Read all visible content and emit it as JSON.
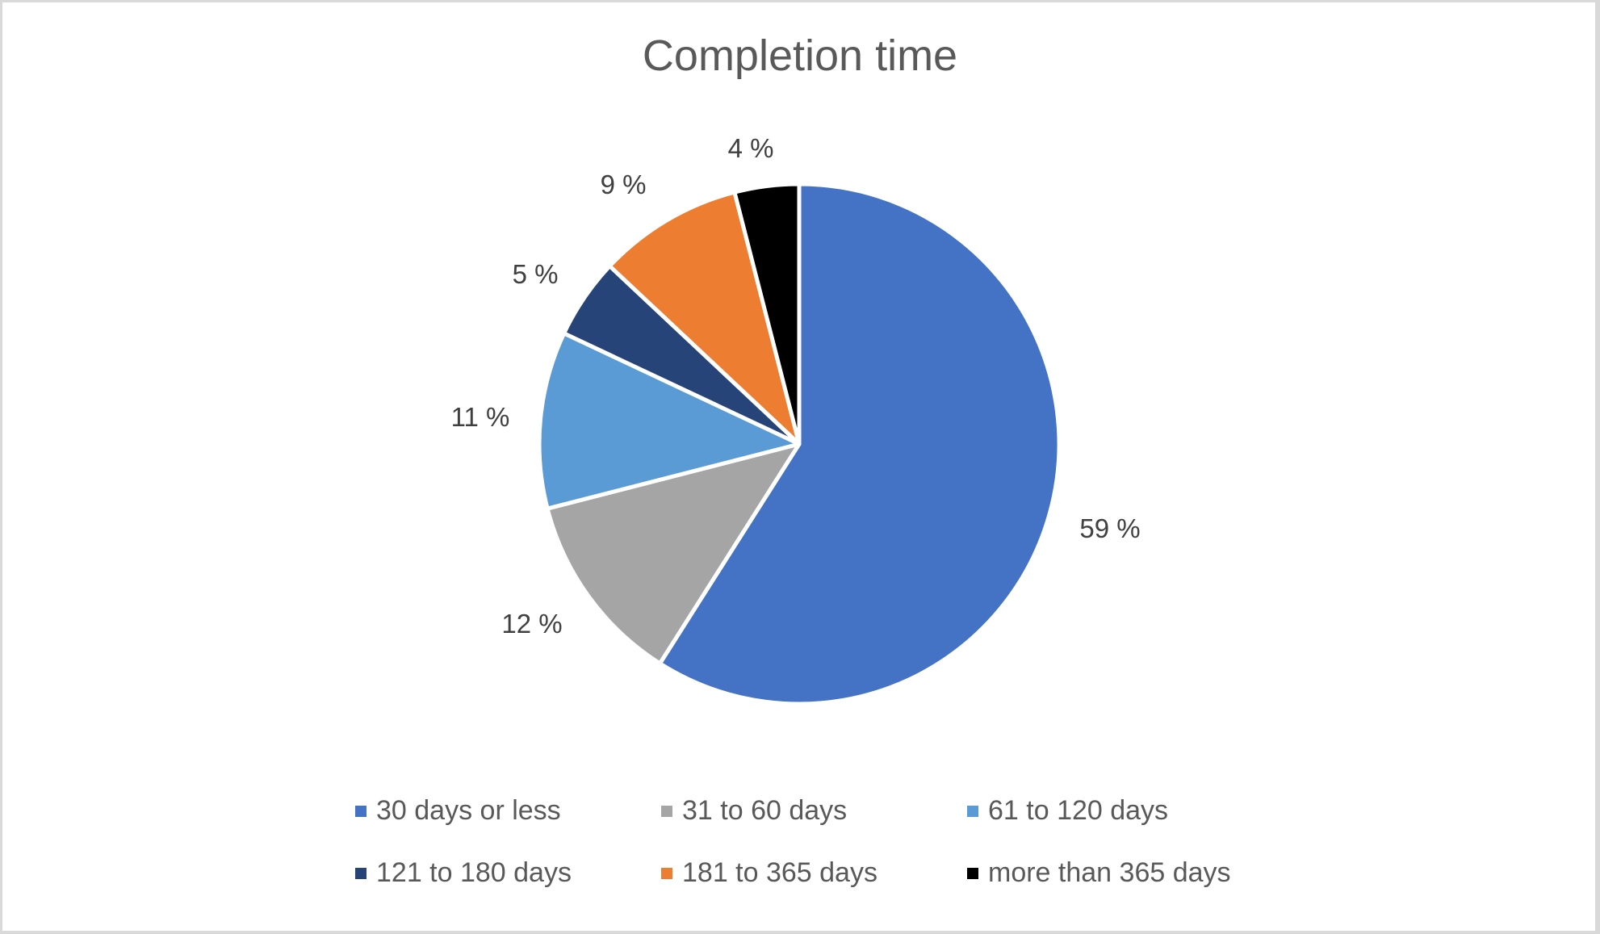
{
  "chart_data": {
    "type": "pie",
    "title": "Completion time",
    "categories": [
      "30 days or less",
      "31 to 60 days",
      "61 to 120 days",
      "121 to 180 days",
      "181 to 365 days",
      "more than 365 days"
    ],
    "values": [
      59,
      12,
      11,
      5,
      9,
      4
    ],
    "value_labels": [
      "59 %",
      "12 %",
      "11 %",
      "5 %",
      "9 %",
      "4 %"
    ],
    "colors": [
      "#4472c4",
      "#a5a5a5",
      "#5b9bd5",
      "#264478",
      "#ed7d31",
      "#000000"
    ],
    "unit": "%",
    "start_angle_deg": 0,
    "direction": "clockwise",
    "legend_position": "bottom",
    "legend_columns": 3
  },
  "title": "Completion time",
  "labels": {
    "s0": "59 %",
    "s1": "12 %",
    "s2": "11 %",
    "s3": "5 %",
    "s4": "9 %",
    "s5": "4 %"
  },
  "legend": {
    "items": [
      {
        "label": "30 days or less",
        "color": "#4472c4"
      },
      {
        "label": "31 to 60 days",
        "color": "#a5a5a5"
      },
      {
        "label": "61 to 120 days",
        "color": "#5b9bd5"
      },
      {
        "label": "121 to 180 days",
        "color": "#264478"
      },
      {
        "label": "181 to 365 days",
        "color": "#ed7d31"
      },
      {
        "label": "more than 365 days",
        "color": "#000000"
      }
    ]
  }
}
